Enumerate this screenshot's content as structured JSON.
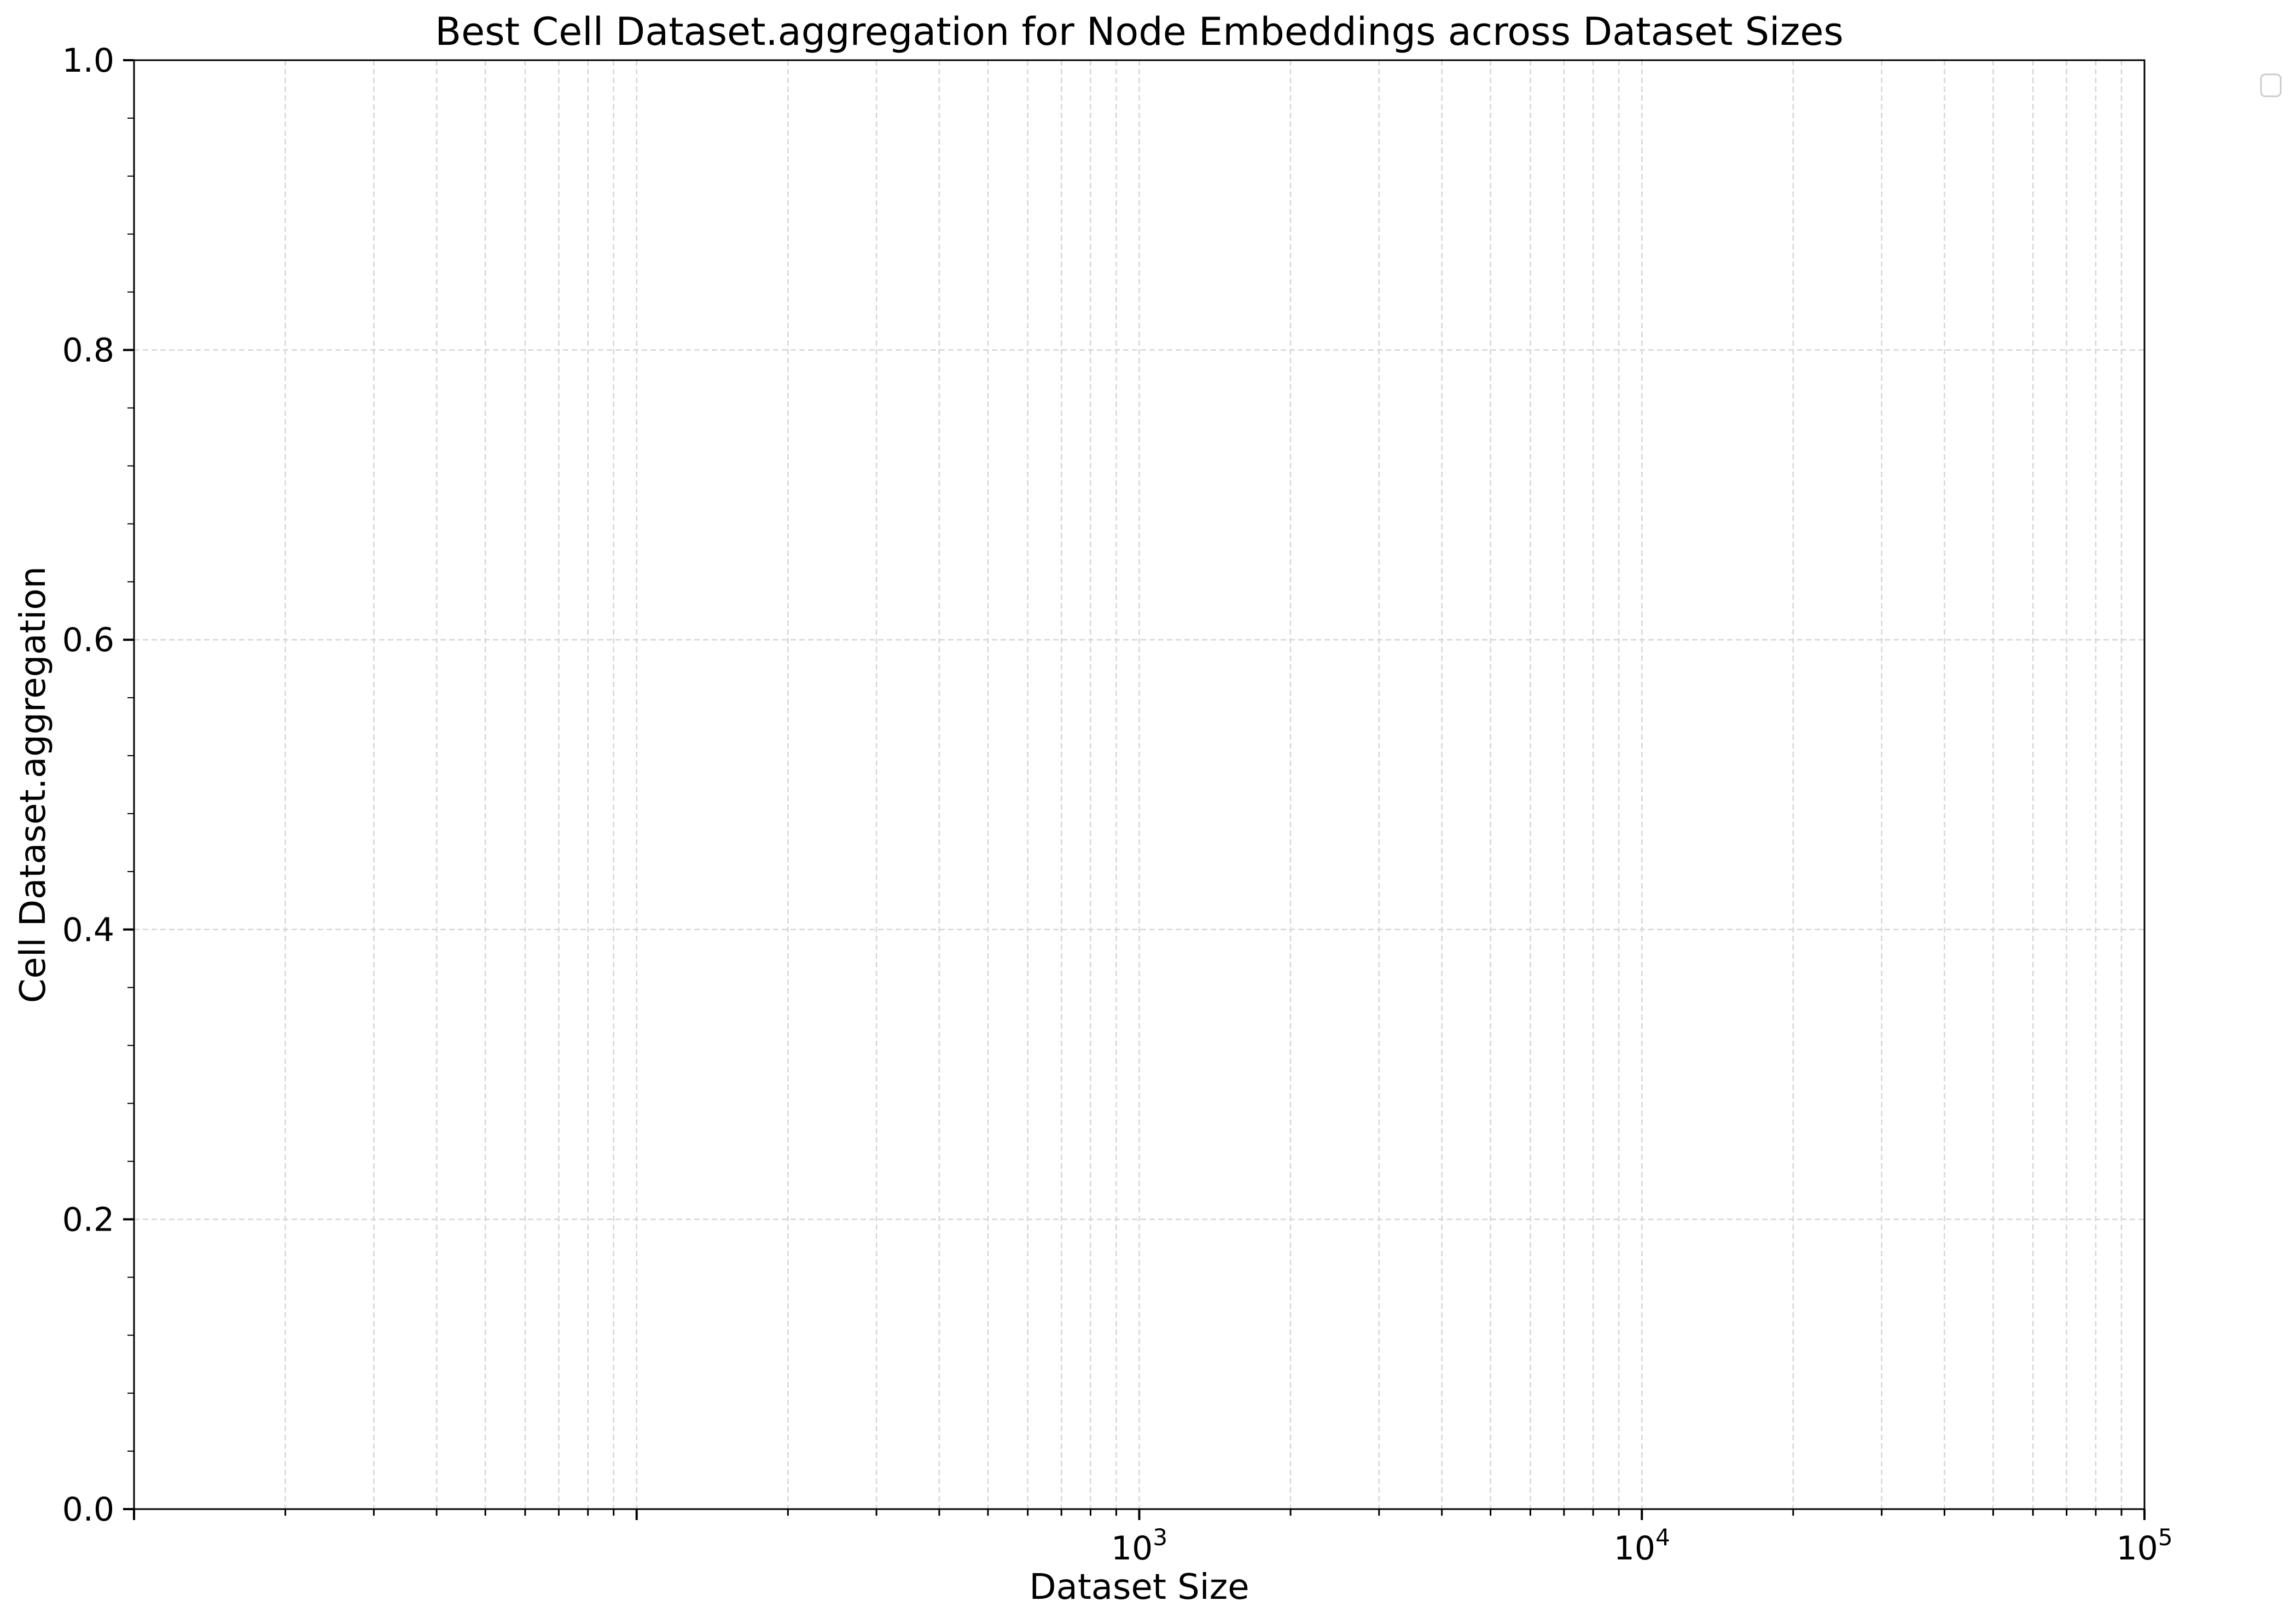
{
  "chart_data": {
    "type": "line",
    "title": "Best Cell Dataset.aggregation for Node Embeddings across Dataset Sizes",
    "xlabel": "Dataset Size",
    "ylabel": "Cell Dataset.aggregation",
    "xscale": "log",
    "xlim": [
      10,
      100000
    ],
    "ylim": [
      0.0,
      1.0
    ],
    "x_tick_labels": [
      {
        "base": "10",
        "exp": "3",
        "value": 1000
      },
      {
        "base": "10",
        "exp": "4",
        "value": 10000
      },
      {
        "base": "10",
        "exp": "5",
        "value": 100000
      }
    ],
    "y_ticks": [
      {
        "value": 0.0,
        "label": "0.0"
      },
      {
        "value": 0.2,
        "label": "0.2"
      },
      {
        "value": 0.4,
        "label": "0.4"
      },
      {
        "value": 0.6,
        "label": "0.6"
      },
      {
        "value": 0.8,
        "label": "0.8"
      },
      {
        "value": 1.0,
        "label": "1.0"
      }
    ],
    "grid": true,
    "legend": "outside-top-right",
    "series": []
  }
}
